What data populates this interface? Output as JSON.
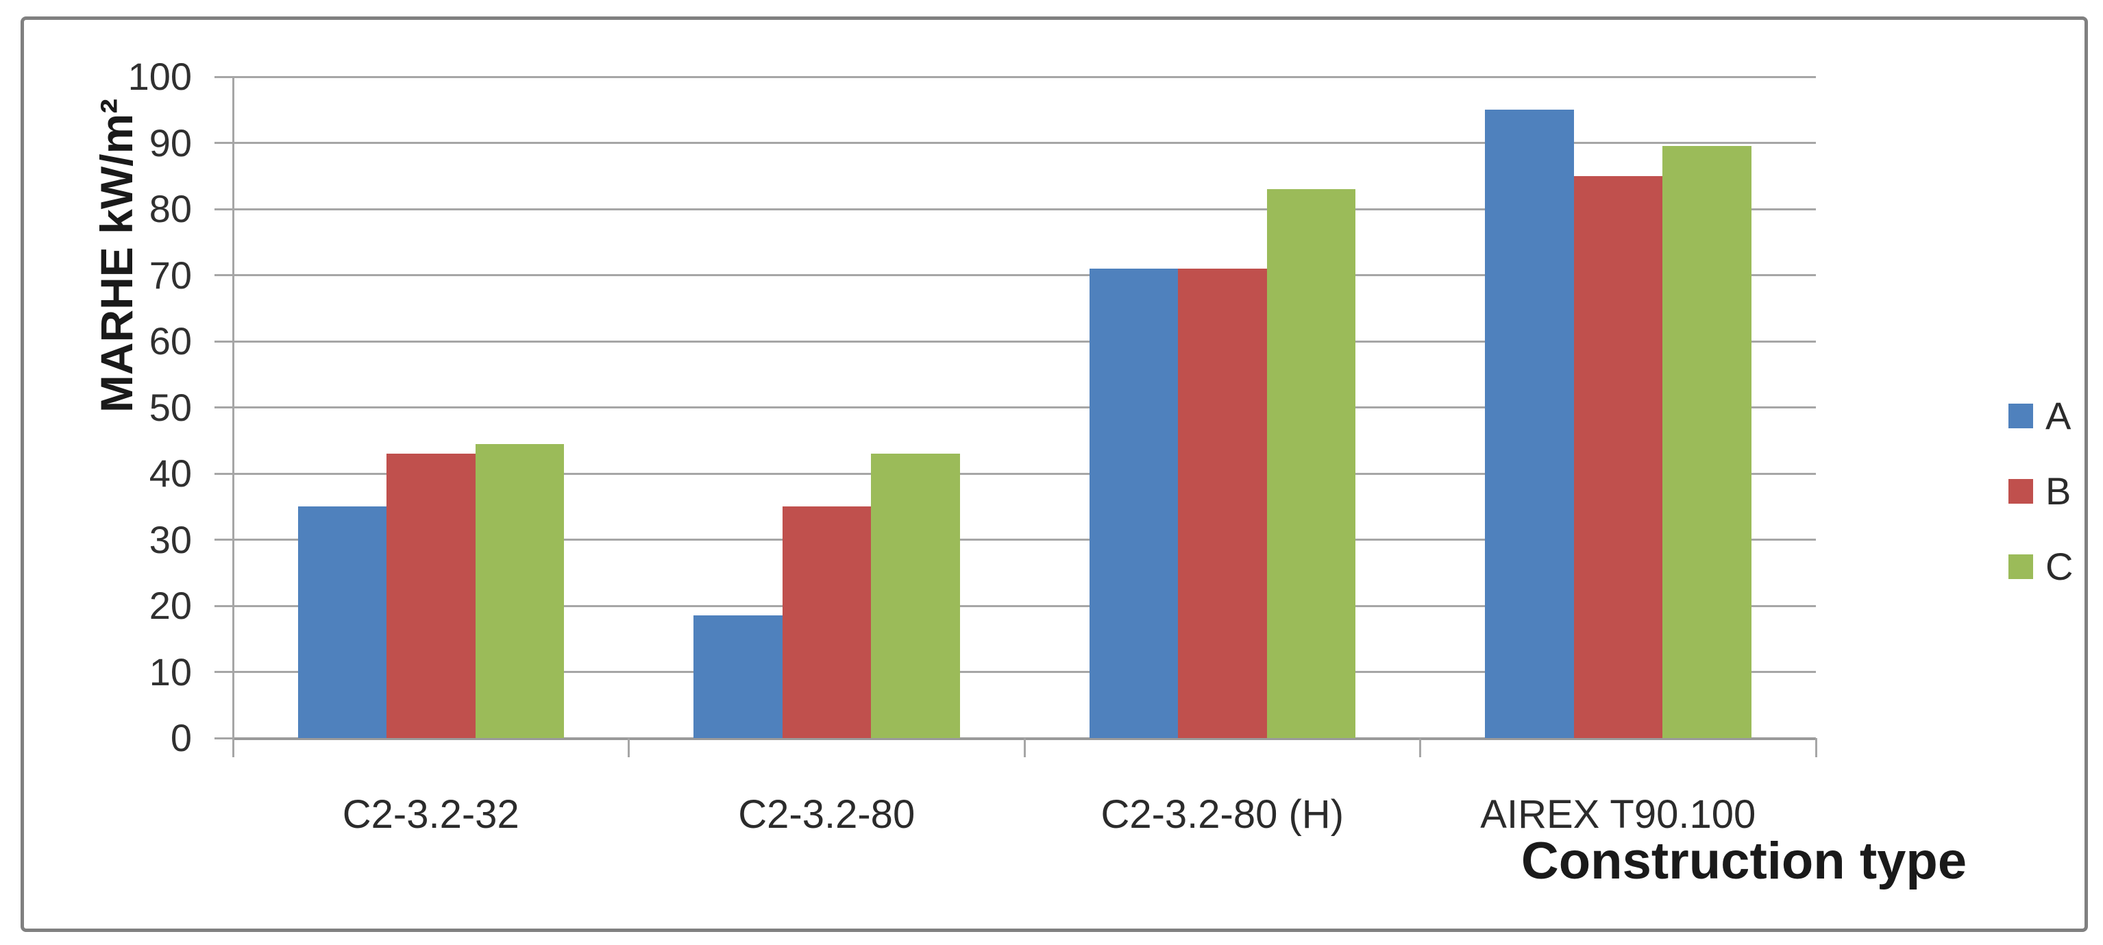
{
  "chart_data": {
    "type": "bar",
    "title": "",
    "xlabel": "Construction type",
    "ylabel": "MARHE kW/m²",
    "categories": [
      "C2-3.2-32",
      "C2-3.2-80",
      "C2-3.2-80 (H)",
      "AIREX T90.100"
    ],
    "series": [
      {
        "name": "A",
        "color": "#4F81BD",
        "values": [
          35,
          18.5,
          71,
          95
        ]
      },
      {
        "name": "B",
        "color": "#C0504D",
        "values": [
          43,
          35,
          71,
          85
        ]
      },
      {
        "name": "C",
        "color": "#9BBB59",
        "values": [
          44.5,
          43,
          83,
          89.5
        ]
      }
    ],
    "ylim": [
      0,
      100
    ],
    "ytick_step": 10,
    "grid": true,
    "legend_position": "right"
  },
  "colors": {
    "gridline": "#a6a6a6",
    "axis": "#9a9a9a",
    "frame_border": "#808080",
    "text": "#2b2b2b"
  }
}
